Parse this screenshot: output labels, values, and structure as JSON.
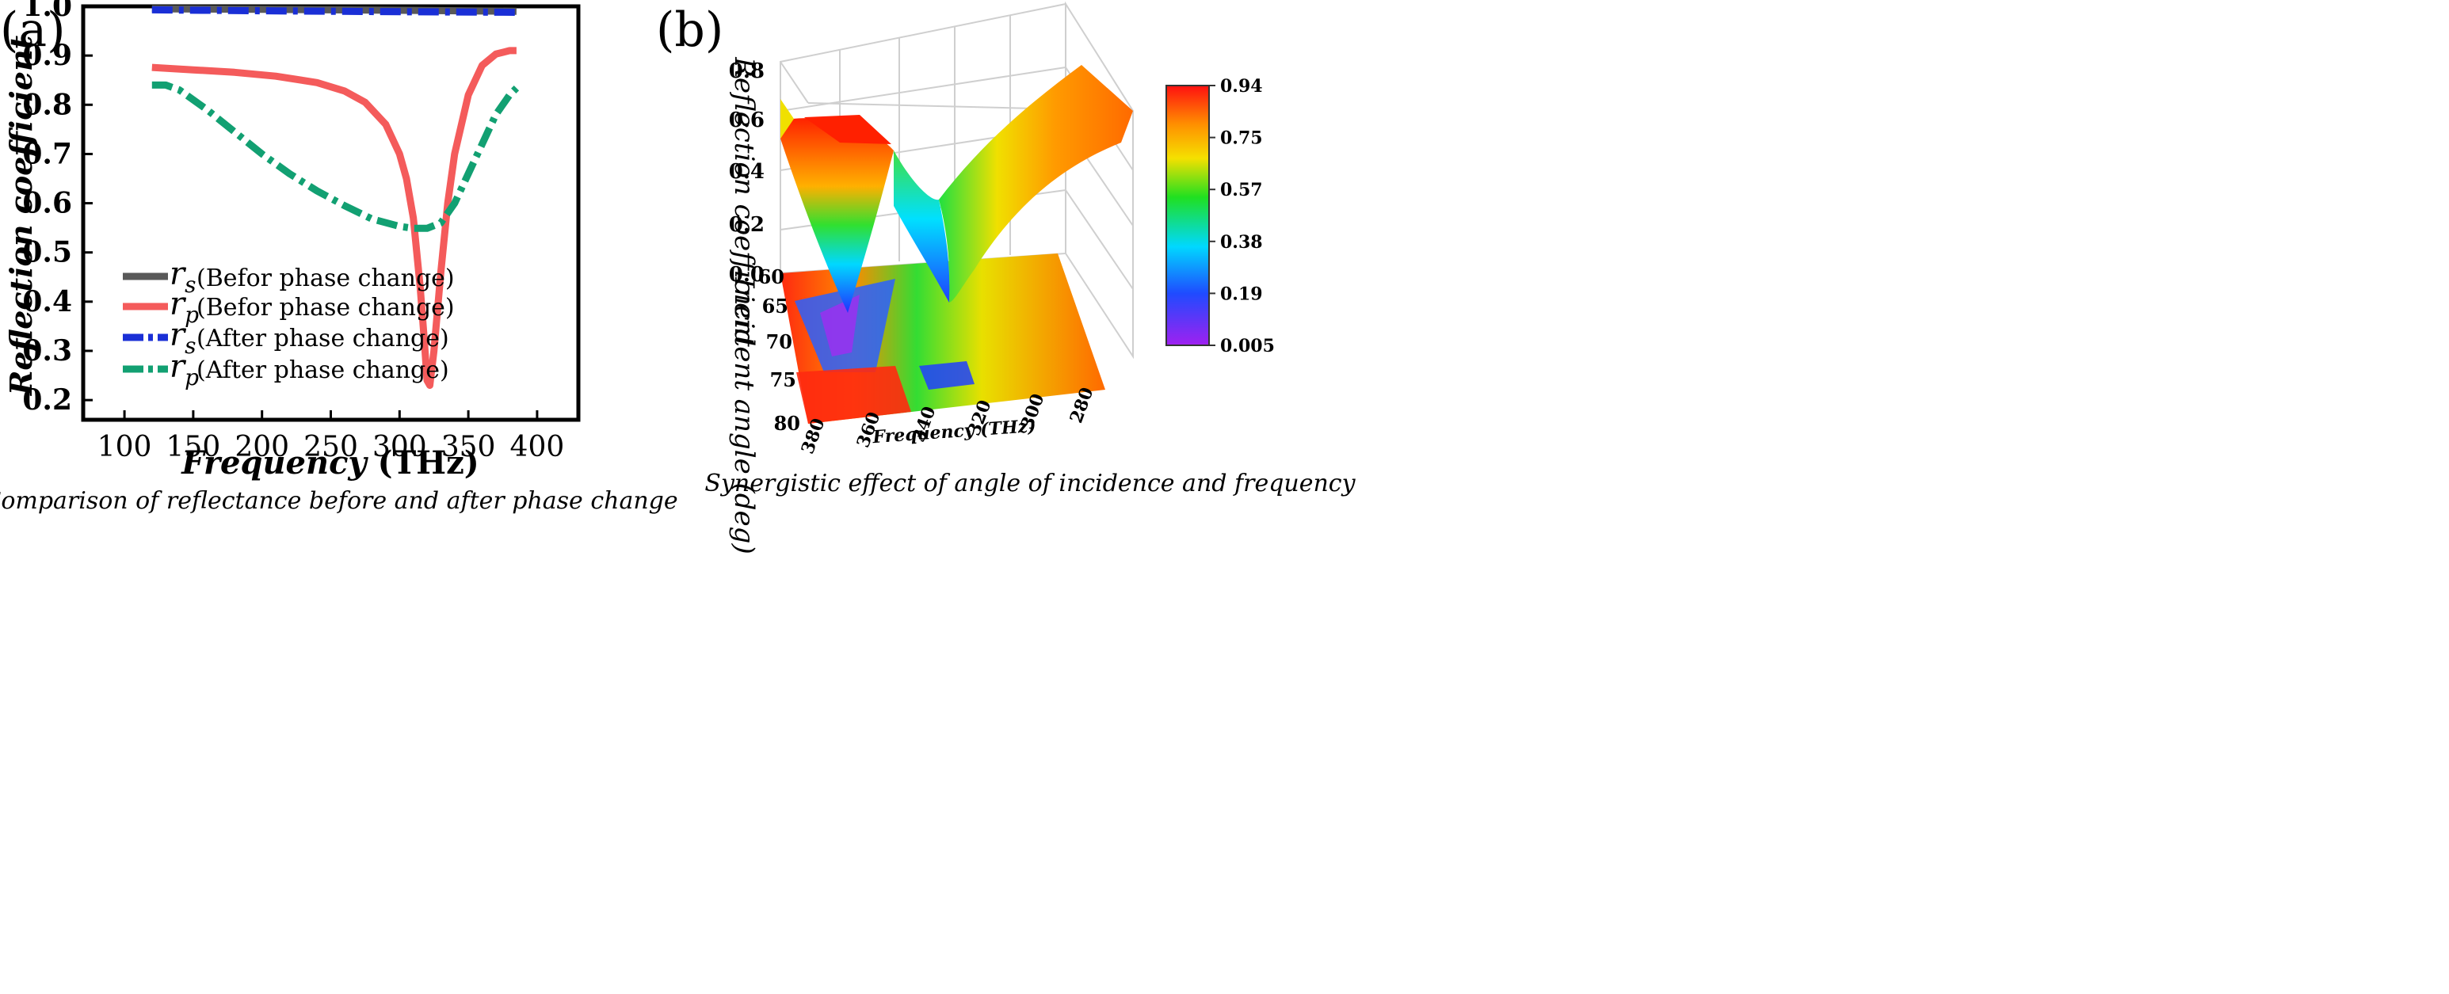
{
  "chart_data": [
    {
      "panel": "(a)",
      "type": "line",
      "xlabel_italic": "Frequency",
      "xlabel_unit": "(THz)",
      "ylabel": "Reflection coefficient",
      "caption": "Comparison of reflectance before and after phase change",
      "xlim": [
        70,
        430
      ],
      "ylim": [
        0.16,
        1.0
      ],
      "xticks": [
        100,
        150,
        200,
        250,
        300,
        350,
        400
      ],
      "yticks": [
        "0.2",
        "0.3",
        "0.4",
        "0.5",
        "0.6",
        "0.7",
        "0.8",
        "0.9",
        "1.0"
      ],
      "grid": false,
      "legend_position": "bottom-left",
      "series": [
        {
          "name": "r_s (Befor phase change)",
          "symbol": "r",
          "sub": "s",
          "text": "(Befor phase change)",
          "color": "#595959",
          "dash": "solid",
          "x": [
            120,
            200,
            300,
            385
          ],
          "y": [
            0.995,
            0.994,
            0.992,
            0.99
          ]
        },
        {
          "name": "r_p (Befor phase change)",
          "symbol": "r",
          "sub": "p",
          "text": "(Befor phase change)",
          "color": "#f45b5b",
          "dash": "solid",
          "x": [
            120,
            150,
            180,
            210,
            240,
            260,
            275,
            290,
            300,
            305,
            310,
            315,
            318,
            320,
            322,
            325,
            330,
            335,
            340,
            350,
            360,
            370,
            380,
            385
          ],
          "y": [
            0.876,
            0.871,
            0.866,
            0.858,
            0.845,
            0.828,
            0.805,
            0.76,
            0.7,
            0.65,
            0.57,
            0.43,
            0.32,
            0.24,
            0.23,
            0.3,
            0.46,
            0.6,
            0.7,
            0.82,
            0.88,
            0.903,
            0.91,
            0.91
          ]
        },
        {
          "name": "r_s (After phase change)",
          "symbol": "r",
          "sub": "s",
          "text": "(After phase change)",
          "color": "#1a2fd6",
          "dash": "dashdot",
          "x": [
            120,
            200,
            300,
            385
          ],
          "y": [
            0.993,
            0.991,
            0.989,
            0.988
          ]
        },
        {
          "name": "r_p (After phase change)",
          "symbol": "r",
          "sub": "p",
          "text": "(After phase change)",
          "color": "#12a072",
          "dash": "dashdot",
          "x": [
            120,
            130,
            140,
            160,
            180,
            200,
            220,
            240,
            260,
            280,
            300,
            310,
            320,
            330,
            340,
            350,
            360,
            370,
            380,
            385
          ],
          "y": [
            0.84,
            0.84,
            0.83,
            0.79,
            0.745,
            0.7,
            0.66,
            0.625,
            0.595,
            0.568,
            0.553,
            0.549,
            0.549,
            0.56,
            0.6,
            0.66,
            0.72,
            0.78,
            0.82,
            0.834
          ]
        }
      ]
    },
    {
      "panel": "(b)",
      "type": "surface3d",
      "zlabel": "Reflection coefficient",
      "ylabel": "Incident angle  (deg)",
      "xlabel": "Frequency (THz)",
      "caption": "Synergistic effect of angle of incidence and frequency",
      "zticks": [
        "0.0",
        "0.2",
        "0.4",
        "0.6",
        "0.8"
      ],
      "angle_ticks": [
        "60",
        "65",
        "70",
        "75",
        "80"
      ],
      "freq_ticks": [
        "380",
        "360",
        "340",
        "320",
        "300",
        "280"
      ],
      "colorbar": {
        "ticks": [
          "0.94",
          "0.75",
          "0.57",
          "0.38",
          "0.19",
          "0.005"
        ],
        "min": 0.005,
        "max": 0.94
      }
    }
  ]
}
